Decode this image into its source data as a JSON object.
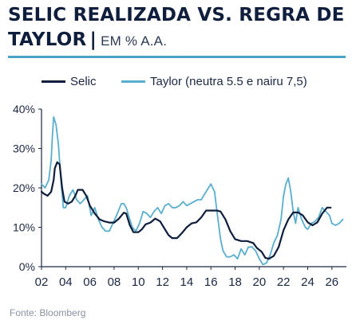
{
  "title": {
    "main": "SELIC REALIZADA VS. REGRA DE",
    "line2": "TAYLOR",
    "separator": "|",
    "unit": "EM % A.A."
  },
  "source": "Fonte: Bloomberg",
  "colors": {
    "selic": "#0f1e3c",
    "taylor": "#5aaecd",
    "rule": "#4aa3c4",
    "axis": "#1a2744"
  },
  "chart_data": {
    "type": "line",
    "title": "SELIC REALIZADA VS. REGRA DE TAYLOR | EM % A.A.",
    "xlabel": "",
    "ylabel": "",
    "xlim": [
      2002,
      2027.2
    ],
    "ylim": [
      0,
      40
    ],
    "xticks": [
      2002,
      2004,
      2006,
      2008,
      2010,
      2012,
      2014,
      2016,
      2018,
      2020,
      2022,
      2024,
      2026
    ],
    "xtick_labels": [
      "02",
      "04",
      "06",
      "08",
      "10",
      "12",
      "14",
      "16",
      "18",
      "20",
      "22",
      "24",
      "26"
    ],
    "yticks": [
      0,
      10,
      20,
      30,
      40
    ],
    "ytick_labels": [
      "0%",
      "10%",
      "20%",
      "30%",
      "40%"
    ],
    "grid": false,
    "legend": "top",
    "series": [
      {
        "name": "Selic",
        "x": [
          2002.0,
          2002.2,
          2002.5,
          2002.8,
          2003.0,
          2003.1,
          2003.3,
          2003.5,
          2003.7,
          2003.9,
          2004.2,
          2004.5,
          2004.8,
          2005.0,
          2005.4,
          2005.7,
          2006.0,
          2006.4,
          2006.8,
          2007.2,
          2007.6,
          2008.0,
          2008.4,
          2008.8,
          2009.0,
          2009.3,
          2009.6,
          2010.0,
          2010.3,
          2010.6,
          2011.0,
          2011.4,
          2011.8,
          2012.2,
          2012.5,
          2012.8,
          2013.2,
          2013.6,
          2014.0,
          2014.4,
          2014.8,
          2015.2,
          2015.6,
          2016.0,
          2016.5,
          2016.8,
          2017.2,
          2017.6,
          2018.0,
          2018.5,
          2019.0,
          2019.5,
          2019.8,
          2020.2,
          2020.5,
          2020.8,
          2021.2,
          2021.6,
          2022.0,
          2022.4,
          2022.8,
          2023.2,
          2023.6,
          2024.0,
          2024.4,
          2024.8,
          2025.2,
          2025.6,
          2025.9
        ],
        "values": [
          19,
          18.5,
          18,
          19,
          22,
          25,
          26.5,
          26,
          20,
          16.5,
          16,
          16.5,
          18,
          19.5,
          19.5,
          18,
          15.5,
          13.5,
          12,
          11.5,
          11.2,
          11.2,
          12.2,
          13.7,
          13.5,
          10.5,
          8.75,
          8.75,
          9.5,
          10.75,
          11.2,
          12.2,
          11.5,
          9.5,
          8.0,
          7.25,
          7.25,
          8.5,
          10.0,
          11.0,
          11.25,
          12.5,
          14.25,
          14.25,
          14.25,
          14.0,
          12.0,
          9.0,
          7.0,
          6.5,
          6.5,
          6.0,
          4.75,
          3.75,
          2.25,
          2.0,
          2.75,
          5.0,
          9.25,
          12.0,
          13.75,
          13.75,
          13.0,
          11.25,
          10.5,
          11.25,
          13.5,
          15.0,
          15.0
        ]
      },
      {
        "name": "Taylor (neutra 5.5 e nairu 7,5)",
        "x": [
          2002.0,
          2002.3,
          2002.6,
          2002.8,
          2002.9,
          2003.0,
          2003.2,
          2003.4,
          2003.6,
          2003.8,
          2004.0,
          2004.3,
          2004.6,
          2004.9,
          2005.2,
          2005.5,
          2005.8,
          2006.1,
          2006.4,
          2006.7,
          2007.0,
          2007.3,
          2007.6,
          2007.9,
          2008.2,
          2008.4,
          2008.6,
          2008.8,
          2009.0,
          2009.2,
          2009.5,
          2009.8,
          2010.1,
          2010.4,
          2010.7,
          2011.0,
          2011.3,
          2011.6,
          2011.9,
          2012.2,
          2012.5,
          2012.8,
          2013.1,
          2013.4,
          2013.7,
          2014.0,
          2014.3,
          2014.6,
          2014.9,
          2015.2,
          2015.5,
          2015.8,
          2016.0,
          2016.3,
          2016.5,
          2016.8,
          2017.0,
          2017.3,
          2017.6,
          2017.9,
          2018.2,
          2018.5,
          2018.8,
          2019.1,
          2019.4,
          2019.7,
          2020.0,
          2020.3,
          2020.6,
          2020.9,
          2021.2,
          2021.5,
          2021.8,
          2022.0,
          2022.2,
          2022.4,
          2022.6,
          2022.8,
          2023.0,
          2023.2,
          2023.5,
          2023.8,
          2024.0,
          2024.3,
          2024.6,
          2024.9,
          2025.2,
          2025.5,
          2025.8,
          2026.0,
          2026.3,
          2026.6,
          2026.9
        ],
        "values": [
          21,
          20,
          22,
          27,
          33,
          38,
          36,
          31,
          22,
          15,
          15,
          18,
          19.5,
          17,
          16,
          17,
          18,
          13,
          15,
          12,
          10,
          9,
          9,
          11,
          13,
          14.5,
          16,
          16,
          15,
          13,
          10,
          9,
          11,
          14,
          13.5,
          12.5,
          14,
          15,
          13.5,
          15.5,
          16,
          15,
          15,
          15.5,
          16.5,
          15.5,
          16,
          16.5,
          17,
          17,
          18.5,
          20,
          21,
          19,
          14,
          7,
          4,
          2.5,
          2.5,
          3,
          2,
          4.5,
          3,
          5,
          5,
          4,
          2,
          0.5,
          1,
          3,
          6,
          8,
          12,
          18,
          21,
          22.5,
          19,
          14,
          11,
          15,
          12,
          10,
          9.5,
          11,
          11.5,
          12.5,
          15,
          14,
          13,
          11,
          10.5,
          11,
          12
        ]
      }
    ]
  }
}
